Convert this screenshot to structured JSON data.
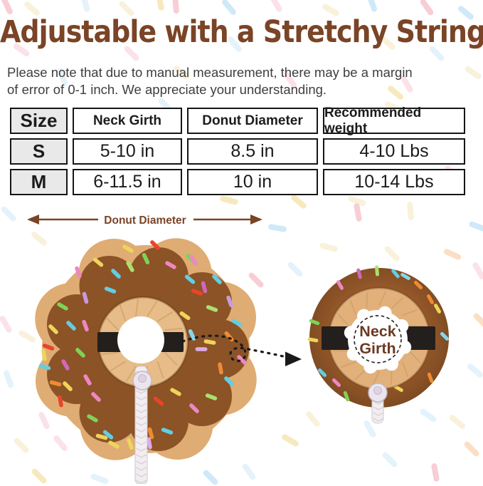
{
  "title": "Adjustable with a Stretchy String",
  "note": {
    "line1": "Please note that due to manual measurement, there may be a margin",
    "line2": "of error of 0-1 inch. We appreciate your understanding."
  },
  "table": {
    "columns": [
      "Size",
      "Neck Girth",
      "Donut Diameter",
      "Recommended weight"
    ],
    "rows": [
      [
        "S",
        "5-10 in",
        "8.5 in",
        "4-10 Lbs"
      ],
      [
        "M",
        "6-11.5 in",
        "10 in",
        "10-14 Lbs"
      ]
    ]
  },
  "diagram": {
    "diameter_label": "Donut Diameter",
    "neck_label": "Neck",
    "girth_label": "Girth"
  },
  "colors": {
    "title_brown": "#7a4426",
    "note_gray": "#3e3e3e",
    "table_border": "#151515",
    "table_header_bg": "#e9e9e9",
    "frosting": "#8b5326",
    "frosting_dark": "#7b4820",
    "dough": "#dfac73",
    "ring_tan": "#e7bc88",
    "strap": "#231f1c",
    "cord": "#f2edf0",
    "pleat": "#c69a5f",
    "arrow_black": "#1a1a1a"
  },
  "palette": {
    "red": "#e8452b",
    "orange": "#ee8c33",
    "yellow": "#eed45c",
    "green": "#7ed357",
    "lightgreen": "#abe06e",
    "cyan": "#63cde2",
    "skyblue": "#86d6ee",
    "pink": "#ee87c2",
    "magenta": "#d069b8",
    "purple": "#c99ade",
    "lavender": "#dcabe3",
    "pastelPink": "#f8cdd6",
    "pastelPinkLight": "#fbe2e8",
    "pastelBlue": "#cfe9f8",
    "pastelBlueLight": "#e4f2fb",
    "pastelYellow": "#f6e9bd",
    "pastelCream": "#f9f1da",
    "pastelPeach": "#fbdfc5"
  },
  "background_sprinkles": [
    [
      10,
      8,
      65,
      "pastelPink"
    ],
    [
      45,
      12,
      40,
      "pastelCream"
    ],
    [
      120,
      4,
      75,
      "pastelBlueLight"
    ],
    [
      178,
      12,
      45,
      "pastelCream"
    ],
    [
      225,
      2,
      80,
      "pastelYellow"
    ],
    [
      247,
      6,
      85,
      "pastelPink"
    ],
    [
      322,
      10,
      50,
      "pastelBlue"
    ],
    [
      388,
      5,
      60,
      "pastelPinkLight"
    ],
    [
      465,
      14,
      30,
      "pastelCream"
    ],
    [
      523,
      4,
      70,
      "pastelBlue"
    ],
    [
      600,
      10,
      55,
      "pastelPink"
    ],
    [
      655,
      18,
      40,
      "pastelBlue"
    ],
    [
      30,
      70,
      35,
      "pastelPinkLight"
    ],
    [
      185,
      75,
      45,
      "pastelPinkLight"
    ],
    [
      330,
      62,
      50,
      "pastelBlueLight"
    ],
    [
      545,
      60,
      40,
      "pastelCream"
    ],
    [
      668,
      58,
      60,
      "pastelPinkLight"
    ],
    [
      88,
      108,
      70,
      "pastelBlueLight"
    ],
    [
      255,
      102,
      40,
      "pastelCream"
    ],
    [
      408,
      112,
      55,
      "pastelPinkLight"
    ],
    [
      614,
      75,
      45,
      "pastelBlueLight"
    ],
    [
      572,
      118,
      60,
      "pastelPinkLight"
    ],
    [
      556,
      130,
      40,
      "pastelYellow"
    ],
    [
      665,
      102,
      35,
      "pastelCream"
    ],
    [
      233,
      148,
      45,
      "pastelBlueLight"
    ],
    [
      553,
      150,
      25,
      "pastelCream"
    ],
    [
      420,
      283,
      40,
      "pastelYellow"
    ],
    [
      502,
      282,
      20,
      "pastelCream"
    ],
    [
      635,
      243,
      50,
      "pastelPinkLight"
    ],
    [
      322,
      281,
      15,
      "pastelYellow"
    ],
    [
      12,
      300,
      45,
      "pastelBlueLight"
    ],
    [
      55,
      335,
      40,
      "pastelCream"
    ],
    [
      390,
      320,
      10,
      "pastelBlue"
    ],
    [
      503,
      298,
      80,
      "pastelPink"
    ],
    [
      577,
      296,
      85,
      "pastelCream"
    ],
    [
      672,
      318,
      20,
      "pastelBlue"
    ],
    [
      360,
      393,
      45,
      "pastelPink"
    ],
    [
      415,
      378,
      45,
      "pastelBlueLight"
    ],
    [
      462,
      347,
      15,
      "pastelCream"
    ],
    [
      551,
      356,
      45,
      "pastelCream"
    ],
    [
      636,
      357,
      25,
      "pastelPeach"
    ],
    [
      8,
      455,
      60,
      "pastelPinkLight"
    ],
    [
      38,
      472,
      30,
      "pastelCream"
    ],
    [
      12,
      532,
      70,
      "pastelBlueLight"
    ],
    [
      673,
      380,
      60,
      "pastelPinkLight"
    ],
    [
      676,
      450,
      45,
      "pastelPeach"
    ],
    [
      668,
      520,
      40,
      "pastelBlueLight"
    ],
    [
      30,
      625,
      45,
      "pastelCream"
    ],
    [
      62,
      590,
      65,
      "pastelPinkLight"
    ],
    [
      85,
      622,
      50,
      "pastelPinkLight"
    ],
    [
      55,
      668,
      45,
      "pastelYellow"
    ],
    [
      140,
      672,
      20,
      "pastelBlueLight"
    ],
    [
      296,
      670,
      45,
      "pastelBlue"
    ],
    [
      350,
      662,
      55,
      "pastelBlueLight"
    ],
    [
      408,
      618,
      30,
      "pastelYellow"
    ],
    [
      440,
      588,
      50,
      "pastelCream"
    ],
    [
      520,
      602,
      60,
      "pastelBlueLight"
    ],
    [
      548,
      645,
      45,
      "pastelBlueLight"
    ],
    [
      602,
      583,
      35,
      "pastelBlueLight"
    ],
    [
      612,
      663,
      80,
      "pastelPink"
    ],
    [
      643,
      592,
      40,
      "pastelCream"
    ],
    [
      663,
      630,
      45,
      "pastelPeach"
    ]
  ],
  "donut_sprinkles": [
    [
      110,
      382,
      70,
      "pink"
    ],
    [
      138,
      368,
      40,
      "yellow"
    ],
    [
      163,
      384,
      45,
      "cyan"
    ],
    [
      183,
      374,
      60,
      "lightgreen"
    ],
    [
      205,
      363,
      65,
      "green"
    ],
    [
      218,
      344,
      45,
      "red"
    ],
    [
      240,
      372,
      30,
      "pink"
    ],
    [
      180,
      349,
      30,
      "yellow"
    ],
    [
      267,
      392,
      40,
      "cyan"
    ],
    [
      268,
      363,
      45,
      "green"
    ],
    [
      287,
      403,
      75,
      "magenta"
    ],
    [
      305,
      392,
      45,
      "cyan"
    ],
    [
      272,
      365,
      60,
      "pink"
    ],
    [
      277,
      410,
      20,
      "red"
    ],
    [
      323,
      423,
      70,
      "purple"
    ],
    [
      298,
      433,
      20,
      "lightgreen"
    ],
    [
      260,
      443,
      35,
      "yellow"
    ],
    [
      155,
      407,
      20,
      "cyan"
    ],
    [
      120,
      418,
      75,
      "purple"
    ],
    [
      88,
      430,
      30,
      "green"
    ],
    [
      75,
      462,
      45,
      "yellow"
    ],
    [
      100,
      457,
      45,
      "cyan"
    ],
    [
      120,
      457,
      70,
      "pink"
    ],
    [
      68,
      487,
      20,
      "red"
    ],
    [
      62,
      498,
      80,
      "yellow"
    ],
    [
      63,
      515,
      15,
      "cyan"
    ],
    [
      92,
      512,
      60,
      "magenta"
    ],
    [
      113,
      495,
      45,
      "green"
    ],
    [
      78,
      538,
      15,
      "orange"
    ],
    [
      95,
      542,
      45,
      "yellow"
    ],
    [
      123,
      533,
      60,
      "pink"
    ],
    [
      135,
      557,
      45,
      "pink"
    ],
    [
      85,
      563,
      80,
      "red"
    ],
    [
      130,
      587,
      30,
      "green"
    ],
    [
      152,
      610,
      40,
      "cyan"
    ],
    [
      143,
      613,
      15,
      "yellow"
    ],
    [
      160,
      624,
      30,
      "yellow"
    ],
    [
      183,
      623,
      70,
      "yellow"
    ],
    [
      212,
      608,
      75,
      "orange"
    ],
    [
      235,
      605,
      20,
      "cyan"
    ],
    [
      210,
      622,
      80,
      "lavender"
    ],
    [
      223,
      563,
      40,
      "red"
    ],
    [
      247,
      550,
      30,
      "yellow"
    ],
    [
      273,
      573,
      45,
      "pink"
    ],
    [
      297,
      557,
      20,
      "lightgreen"
    ],
    [
      322,
      535,
      45,
      "cyan"
    ],
    [
      310,
      517,
      80,
      "orange"
    ],
    [
      340,
      505,
      45,
      "pink"
    ],
    [
      295,
      480,
      10,
      "yellow"
    ],
    [
      333,
      453,
      30,
      "cyan"
    ],
    [
      270,
      470,
      65,
      "skyblue"
    ],
    [
      283,
      490,
      0,
      "lavender"
    ],
    [
      322,
      472,
      50,
      "orange"
    ]
  ],
  "ring_sprinkles": [
    [
      478,
      400,
      60,
      "pink"
    ],
    [
      442,
      452,
      20,
      "green"
    ],
    [
      440,
      477,
      10,
      "yellow"
    ],
    [
      453,
      523,
      45,
      "cyan"
    ],
    [
      487,
      556,
      70,
      "green"
    ],
    [
      473,
      537,
      45,
      "pink"
    ],
    [
      530,
      380,
      85,
      "lightgreen"
    ],
    [
      556,
      384,
      50,
      "cyan"
    ],
    [
      505,
      384,
      75,
      "magenta"
    ],
    [
      588,
      400,
      45,
      "orange"
    ],
    [
      570,
      388,
      30,
      "skyblue"
    ],
    [
      605,
      420,
      60,
      "orange"
    ],
    [
      615,
      433,
      60,
      "yellow"
    ],
    [
      625,
      472,
      45,
      "skyblue"
    ],
    [
      605,
      530,
      70,
      "orange"
    ],
    [
      560,
      545,
      30,
      "yellow"
    ]
  ]
}
